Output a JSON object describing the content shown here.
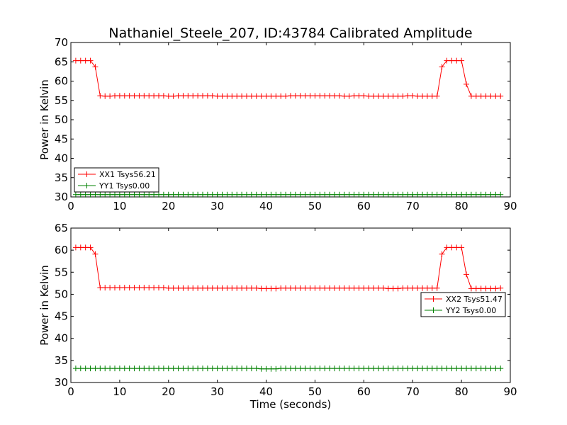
{
  "title": "Nathaniel_Steele_207, ID:43784 Calibrated Amplitude",
  "xlabel": "Time (seconds)",
  "ylabel": "Power in Kelvin",
  "colors": {
    "xx": "#ff0000",
    "yy": "#008000",
    "axes": "#000000",
    "background": "#ffffff"
  },
  "chart_data": [
    {
      "type": "line",
      "ylabel": "Power in Kelvin",
      "xlabel": "",
      "xlim": [
        0,
        90
      ],
      "ylim": [
        30,
        70
      ],
      "xticks": [
        0,
        10,
        20,
        30,
        40,
        50,
        60,
        70,
        80,
        90
      ],
      "yticks": [
        30,
        35,
        40,
        45,
        50,
        55,
        60,
        65,
        70
      ],
      "legend_position": "lower-left",
      "grid": false,
      "marker": "plus",
      "x": [
        1,
        2,
        3,
        4,
        5,
        6,
        7,
        8,
        9,
        10,
        11,
        12,
        13,
        14,
        15,
        16,
        17,
        18,
        19,
        20,
        21,
        22,
        23,
        24,
        25,
        26,
        27,
        28,
        29,
        30,
        31,
        32,
        33,
        34,
        35,
        36,
        37,
        38,
        39,
        40,
        41,
        42,
        43,
        44,
        45,
        46,
        47,
        48,
        49,
        50,
        51,
        52,
        53,
        54,
        55,
        56,
        57,
        58,
        59,
        60,
        61,
        62,
        63,
        64,
        65,
        66,
        67,
        68,
        69,
        70,
        71,
        72,
        73,
        74,
        75,
        76,
        77,
        78,
        79,
        80,
        81,
        82,
        83,
        84,
        85,
        86,
        87,
        88
      ],
      "series": [
        {
          "name": "XX1 Tsys56.21",
          "color": "#ff0000",
          "values": [
            65.3,
            65.3,
            65.3,
            65.3,
            63.7,
            56.2,
            56.1,
            56.1,
            56.2,
            56.2,
            56.2,
            56.2,
            56.2,
            56.2,
            56.2,
            56.2,
            56.2,
            56.2,
            56.2,
            56.1,
            56.1,
            56.2,
            56.2,
            56.2,
            56.2,
            56.2,
            56.2,
            56.2,
            56.2,
            56.1,
            56.1,
            56.1,
            56.1,
            56.1,
            56.1,
            56.1,
            56.1,
            56.1,
            56.1,
            56.1,
            56.1,
            56.1,
            56.1,
            56.1,
            56.2,
            56.2,
            56.2,
            56.2,
            56.2,
            56.2,
            56.2,
            56.2,
            56.2,
            56.2,
            56.2,
            56.1,
            56.1,
            56.2,
            56.2,
            56.2,
            56.1,
            56.1,
            56.1,
            56.1,
            56.1,
            56.1,
            56.1,
            56.1,
            56.2,
            56.2,
            56.1,
            56.1,
            56.1,
            56.1,
            56.1,
            63.7,
            65.3,
            65.3,
            65.3,
            65.3,
            59.2,
            56.1,
            56.1,
            56.1,
            56.1,
            56.1,
            56.1,
            56.1
          ]
        },
        {
          "name": "YY1 Tsys0.00",
          "color": "#008000",
          "values": [
            30.6,
            30.6,
            30.6,
            30.6,
            30.6,
            30.6,
            30.6,
            30.6,
            30.6,
            30.6,
            30.6,
            30.6,
            30.6,
            30.6,
            30.6,
            30.6,
            30.6,
            30.6,
            30.6,
            30.6,
            30.6,
            30.6,
            30.6,
            30.6,
            30.6,
            30.6,
            30.6,
            30.6,
            30.6,
            30.6,
            30.6,
            30.6,
            30.6,
            30.6,
            30.6,
            30.6,
            30.6,
            30.6,
            30.6,
            30.6,
            30.6,
            30.6,
            30.6,
            30.6,
            30.6,
            30.6,
            30.6,
            30.6,
            30.6,
            30.6,
            30.6,
            30.6,
            30.6,
            30.6,
            30.6,
            30.6,
            30.6,
            30.6,
            30.6,
            30.6,
            30.6,
            30.6,
            30.6,
            30.6,
            30.6,
            30.6,
            30.6,
            30.6,
            30.6,
            30.6,
            30.6,
            30.6,
            30.6,
            30.6,
            30.6,
            30.6,
            30.6,
            30.6,
            30.6,
            30.6,
            30.6,
            30.6,
            30.6,
            30.6,
            30.6,
            30.6,
            30.6,
            30.6
          ]
        }
      ]
    },
    {
      "type": "line",
      "ylabel": "Power in Kelvin",
      "xlabel": "Time (seconds)",
      "xlim": [
        0,
        90
      ],
      "ylim": [
        30,
        65
      ],
      "xticks": [
        0,
        10,
        20,
        30,
        40,
        50,
        60,
        70,
        80,
        90
      ],
      "yticks": [
        30,
        35,
        40,
        45,
        50,
        55,
        60,
        65
      ],
      "legend_position": "center-right",
      "grid": false,
      "marker": "plus",
      "x": [
        1,
        2,
        3,
        4,
        5,
        6,
        7,
        8,
        9,
        10,
        11,
        12,
        13,
        14,
        15,
        16,
        17,
        18,
        19,
        20,
        21,
        22,
        23,
        24,
        25,
        26,
        27,
        28,
        29,
        30,
        31,
        32,
        33,
        34,
        35,
        36,
        37,
        38,
        39,
        40,
        41,
        42,
        43,
        44,
        45,
        46,
        47,
        48,
        49,
        50,
        51,
        52,
        53,
        54,
        55,
        56,
        57,
        58,
        59,
        60,
        61,
        62,
        63,
        64,
        65,
        66,
        67,
        68,
        69,
        70,
        71,
        72,
        73,
        74,
        75,
        76,
        77,
        78,
        79,
        80,
        81,
        82,
        83,
        84,
        85,
        86,
        87,
        88
      ],
      "series": [
        {
          "name": "XX2 Tsys51.47",
          "color": "#ff0000",
          "values": [
            60.6,
            60.6,
            60.6,
            60.6,
            59.1,
            51.5,
            51.5,
            51.5,
            51.5,
            51.5,
            51.5,
            51.5,
            51.5,
            51.5,
            51.5,
            51.5,
            51.5,
            51.5,
            51.5,
            51.4,
            51.4,
            51.4,
            51.4,
            51.4,
            51.4,
            51.4,
            51.4,
            51.4,
            51.4,
            51.4,
            51.4,
            51.4,
            51.4,
            51.4,
            51.4,
            51.4,
            51.4,
            51.4,
            51.3,
            51.3,
            51.3,
            51.3,
            51.4,
            51.4,
            51.4,
            51.4,
            51.4,
            51.4,
            51.4,
            51.4,
            51.4,
            51.4,
            51.4,
            51.4,
            51.4,
            51.4,
            51.4,
            51.4,
            51.4,
            51.4,
            51.4,
            51.4,
            51.4,
            51.4,
            51.3,
            51.3,
            51.3,
            51.4,
            51.4,
            51.4,
            51.4,
            51.4,
            51.4,
            51.4,
            51.4,
            59.1,
            60.6,
            60.6,
            60.6,
            60.6,
            54.5,
            51.3,
            51.3,
            51.3,
            51.3,
            51.3,
            51.3,
            51.4
          ]
        },
        {
          "name": "YY2 Tsys0.00",
          "color": "#008000",
          "values": [
            33.2,
            33.2,
            33.2,
            33.2,
            33.2,
            33.2,
            33.2,
            33.2,
            33.2,
            33.2,
            33.2,
            33.2,
            33.2,
            33.2,
            33.2,
            33.2,
            33.2,
            33.2,
            33.2,
            33.2,
            33.2,
            33.2,
            33.2,
            33.2,
            33.2,
            33.2,
            33.2,
            33.2,
            33.2,
            33.2,
            33.2,
            33.2,
            33.2,
            33.2,
            33.2,
            33.2,
            33.2,
            33.2,
            33.1,
            33.1,
            33.1,
            33.1,
            33.2,
            33.2,
            33.2,
            33.2,
            33.2,
            33.2,
            33.2,
            33.2,
            33.2,
            33.2,
            33.2,
            33.2,
            33.2,
            33.2,
            33.2,
            33.2,
            33.2,
            33.2,
            33.2,
            33.2,
            33.2,
            33.2,
            33.2,
            33.2,
            33.2,
            33.2,
            33.2,
            33.2,
            33.2,
            33.2,
            33.2,
            33.2,
            33.2,
            33.2,
            33.2,
            33.2,
            33.2,
            33.2,
            33.2,
            33.2,
            33.2,
            33.2,
            33.2,
            33.2,
            33.2,
            33.2
          ]
        }
      ]
    }
  ]
}
